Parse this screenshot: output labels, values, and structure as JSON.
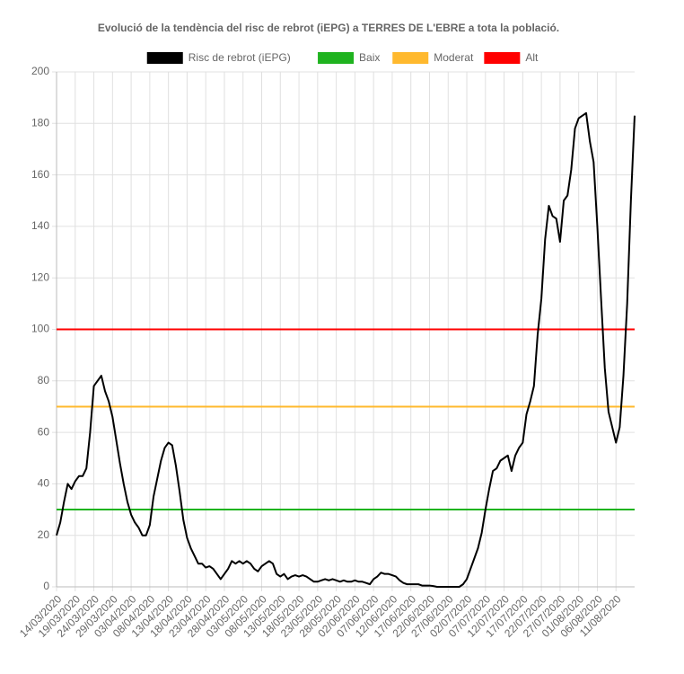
{
  "chart_data": {
    "type": "line",
    "title": "Evolució de la tendència del risc de rebrot (iEPG) a TERRES DE L'EBRE a tota la població.",
    "categories": [
      "14/03/2020",
      null,
      null,
      null,
      null,
      "19/03/2020",
      null,
      null,
      null,
      null,
      "24/03/2020",
      null,
      null,
      null,
      null,
      "29/03/2020",
      null,
      null,
      null,
      null,
      "03/04/2020",
      null,
      null,
      null,
      null,
      "08/04/2020",
      null,
      null,
      null,
      null,
      "13/04/2020",
      null,
      null,
      null,
      null,
      "18/04/2020",
      null,
      null,
      null,
      null,
      "23/04/2020",
      null,
      null,
      null,
      null,
      "28/04/2020",
      null,
      null,
      null,
      null,
      "03/05/2020",
      null,
      null,
      null,
      null,
      "08/05/2020",
      null,
      null,
      null,
      null,
      "13/05/2020",
      null,
      null,
      null,
      null,
      "18/05/2020",
      null,
      null,
      null,
      null,
      "23/05/2020",
      null,
      null,
      null,
      null,
      "28/05/2020",
      null,
      null,
      null,
      null,
      "02/06/2020",
      null,
      null,
      null,
      null,
      "07/06/2020",
      null,
      null,
      null,
      null,
      "12/06/2020",
      null,
      null,
      null,
      null,
      "17/06/2020",
      null,
      null,
      null,
      null,
      "22/06/2020",
      null,
      null,
      null,
      null,
      "27/06/2020",
      null,
      null,
      null,
      null,
      "02/07/2020",
      null,
      null,
      null,
      null,
      "07/07/2020",
      null,
      null,
      null,
      null,
      "12/07/2020",
      null,
      null,
      null,
      null,
      "17/07/2020",
      null,
      null,
      null,
      null,
      "22/07/2020",
      null,
      null,
      null,
      null,
      "27/07/2020",
      null,
      null,
      null,
      null,
      "01/08/2020",
      null,
      null,
      null,
      null,
      "06/08/2020",
      null,
      null,
      null,
      null,
      "11/08/2020",
      null,
      null,
      null,
      null,
      null
    ],
    "series": [
      {
        "name": "Risc de rebrot (iEPG)",
        "color": "#000000",
        "values": [
          20,
          25,
          33,
          40,
          38,
          41,
          43,
          43,
          46,
          60,
          78,
          80,
          82,
          76,
          72,
          66,
          57,
          48,
          40,
          33,
          28,
          25,
          23,
          20,
          20,
          24,
          35,
          42,
          49,
          54,
          56,
          55,
          47,
          37,
          26,
          19,
          15,
          12,
          9,
          9,
          7.5,
          8,
          7,
          5,
          3,
          5,
          7,
          10,
          9,
          10,
          9,
          10,
          9,
          7,
          6,
          8,
          9,
          10,
          9,
          5,
          4,
          5,
          3,
          4,
          4.5,
          4,
          4.5,
          4,
          3,
          2,
          2,
          2.5,
          3,
          2.5,
          3,
          2.5,
          2,
          2.5,
          2,
          2,
          2.5,
          2,
          2,
          1.5,
          1,
          3,
          4,
          5.5,
          5,
          5,
          4.5,
          4,
          2.5,
          1.5,
          1,
          1,
          1,
          1,
          0.5,
          0.5,
          0.5,
          0.3,
          0,
          0,
          0,
          0,
          0,
          0,
          0,
          1,
          3,
          7,
          11,
          15,
          21,
          30,
          38,
          45,
          46,
          49,
          50,
          51,
          45,
          51,
          54,
          56,
          67,
          72,
          78,
          98,
          112,
          135,
          148,
          144,
          143,
          134,
          150,
          152,
          162,
          178,
          182,
          183,
          184,
          173,
          165,
          140,
          112,
          85,
          68,
          62,
          56,
          62,
          82,
          110,
          150,
          183
        ]
      },
      {
        "name": "Baix",
        "color": "#1fb31f",
        "values": [
          30,
          30,
          30,
          30,
          30,
          30,
          30,
          30,
          30,
          30,
          30,
          30,
          30,
          30,
          30,
          30,
          30,
          30,
          30,
          30,
          30,
          30,
          30,
          30,
          30,
          30,
          30,
          30,
          30,
          30,
          30,
          30,
          30,
          30,
          30,
          30,
          30,
          30,
          30,
          30,
          30,
          30,
          30,
          30,
          30,
          30,
          30,
          30,
          30,
          30,
          30,
          30,
          30,
          30,
          30,
          30,
          30,
          30,
          30,
          30,
          30,
          30,
          30,
          30,
          30,
          30,
          30,
          30,
          30,
          30,
          30,
          30,
          30,
          30,
          30,
          30,
          30,
          30,
          30,
          30,
          30,
          30,
          30,
          30,
          30,
          30,
          30,
          30,
          30,
          30,
          30,
          30,
          30,
          30,
          30,
          30,
          30,
          30,
          30,
          30,
          30,
          30,
          30,
          30,
          30,
          30,
          30,
          30,
          30,
          30,
          30,
          30,
          30,
          30,
          30,
          30,
          30,
          30,
          30,
          30,
          30,
          30,
          30,
          30,
          30,
          30,
          30,
          30,
          30,
          30,
          30,
          30,
          30,
          30,
          30,
          30,
          30,
          30,
          30,
          30,
          30,
          30,
          30,
          30,
          30,
          30,
          30,
          30,
          30,
          30,
          30,
          30,
          30,
          30,
          30,
          30
        ]
      },
      {
        "name": "Moderat",
        "color": "#ffb92e",
        "values": [
          70,
          70,
          70,
          70,
          70,
          70,
          70,
          70,
          70,
          70,
          70,
          70,
          70,
          70,
          70,
          70,
          70,
          70,
          70,
          70,
          70,
          70,
          70,
          70,
          70,
          70,
          70,
          70,
          70,
          70,
          70,
          70,
          70,
          70,
          70,
          70,
          70,
          70,
          70,
          70,
          70,
          70,
          70,
          70,
          70,
          70,
          70,
          70,
          70,
          70,
          70,
          70,
          70,
          70,
          70,
          70,
          70,
          70,
          70,
          70,
          70,
          70,
          70,
          70,
          70,
          70,
          70,
          70,
          70,
          70,
          70,
          70,
          70,
          70,
          70,
          70,
          70,
          70,
          70,
          70,
          70,
          70,
          70,
          70,
          70,
          70,
          70,
          70,
          70,
          70,
          70,
          70,
          70,
          70,
          70,
          70,
          70,
          70,
          70,
          70,
          70,
          70,
          70,
          70,
          70,
          70,
          70,
          70,
          70,
          70,
          70,
          70,
          70,
          70,
          70,
          70,
          70,
          70,
          70,
          70,
          70,
          70,
          70,
          70,
          70,
          70,
          70,
          70,
          70,
          70,
          70,
          70,
          70,
          70,
          70,
          70,
          70,
          70,
          70,
          70,
          70,
          70,
          70,
          70,
          70,
          70,
          70,
          70,
          70,
          70,
          70,
          70,
          70,
          70,
          70,
          70
        ]
      },
      {
        "name": "Alt",
        "color": "#ff0000",
        "values": [
          100,
          100,
          100,
          100,
          100,
          100,
          100,
          100,
          100,
          100,
          100,
          100,
          100,
          100,
          100,
          100,
          100,
          100,
          100,
          100,
          100,
          100,
          100,
          100,
          100,
          100,
          100,
          100,
          100,
          100,
          100,
          100,
          100,
          100,
          100,
          100,
          100,
          100,
          100,
          100,
          100,
          100,
          100,
          100,
          100,
          100,
          100,
          100,
          100,
          100,
          100,
          100,
          100,
          100,
          100,
          100,
          100,
          100,
          100,
          100,
          100,
          100,
          100,
          100,
          100,
          100,
          100,
          100,
          100,
          100,
          100,
          100,
          100,
          100,
          100,
          100,
          100,
          100,
          100,
          100,
          100,
          100,
          100,
          100,
          100,
          100,
          100,
          100,
          100,
          100,
          100,
          100,
          100,
          100,
          100,
          100,
          100,
          100,
          100,
          100,
          100,
          100,
          100,
          100,
          100,
          100,
          100,
          100,
          100,
          100,
          100,
          100,
          100,
          100,
          100,
          100,
          100,
          100,
          100,
          100,
          100,
          100,
          100,
          100,
          100,
          100,
          100,
          100,
          100,
          100,
          100,
          100,
          100,
          100,
          100,
          100,
          100,
          100,
          100,
          100,
          100,
          100,
          100,
          100,
          100,
          100,
          100,
          100,
          100,
          100,
          100,
          100,
          100,
          100,
          100,
          100
        ]
      }
    ],
    "ylim": [
      0,
      200
    ],
    "yticks": [
      0,
      20,
      40,
      60,
      80,
      100,
      120,
      140,
      160,
      180,
      200
    ],
    "grid": true
  }
}
